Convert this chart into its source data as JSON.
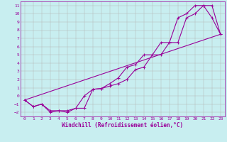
{
  "xlabel": "Windchill (Refroidissement éolien,°C)",
  "background_color": "#c8eef0",
  "line_color": "#990099",
  "grid_color": "#b0b0b0",
  "xlim": [
    -0.5,
    23.5
  ],
  "ylim": [
    -2.5,
    11.5
  ],
  "xticks": [
    0,
    1,
    2,
    3,
    4,
    5,
    6,
    7,
    8,
    9,
    10,
    11,
    12,
    13,
    14,
    15,
    16,
    17,
    18,
    19,
    20,
    21,
    22,
    23
  ],
  "yticks": [
    -2,
    -1,
    0,
    1,
    2,
    3,
    4,
    5,
    6,
    7,
    8,
    9,
    10,
    11
  ],
  "line1_x": [
    0,
    1,
    2,
    3,
    4,
    5,
    6,
    7,
    8,
    9,
    10,
    11,
    12,
    13,
    14,
    15,
    16,
    17,
    18,
    19,
    20,
    21,
    22,
    23
  ],
  "line1_y": [
    -0.5,
    -1.3,
    -1.0,
    -1.8,
    -1.8,
    -1.8,
    -1.5,
    -1.5,
    0.8,
    0.9,
    1.2,
    1.5,
    2.0,
    3.2,
    3.5,
    5.0,
    5.0,
    6.5,
    6.5,
    9.5,
    10.0,
    11.0,
    11.0,
    7.5
  ],
  "line2_x": [
    0,
    1,
    2,
    3,
    4,
    5,
    6,
    7,
    8,
    9,
    10,
    11,
    12,
    13,
    14,
    15,
    16,
    17,
    18,
    19,
    20,
    21,
    22,
    23
  ],
  "line2_y": [
    -0.5,
    -1.3,
    -1.0,
    -2.0,
    -1.8,
    -2.0,
    -1.5,
    0.0,
    0.8,
    0.9,
    1.5,
    2.2,
    3.5,
    3.8,
    5.0,
    5.0,
    6.5,
    6.5,
    9.5,
    10.0,
    11.0,
    11.0,
    9.5,
    7.5
  ],
  "line3_x": [
    0,
    23
  ],
  "line3_y": [
    -0.5,
    7.5
  ],
  "marker": "+",
  "markersize": 3,
  "linewidth": 0.8,
  "tick_fontsize": 4.5,
  "label_fontsize": 5.5
}
